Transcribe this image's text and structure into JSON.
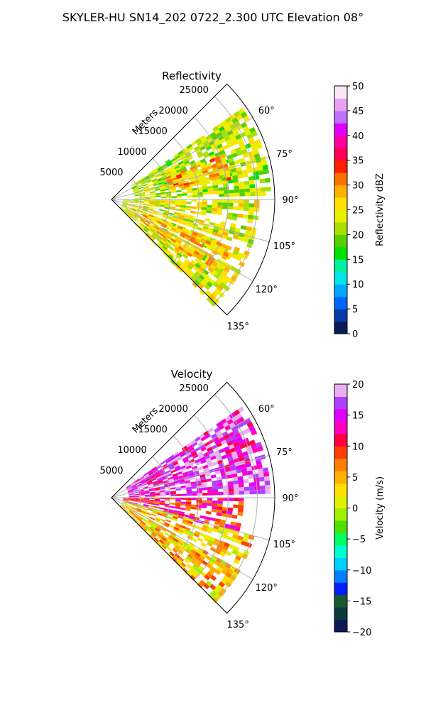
{
  "title": "SKYLER-HU  SN14_202  0722_2.300 UTC Elevation 08°",
  "chart_data": [
    {
      "type": "heatmap",
      "projection": "polar-sector",
      "title": "Reflectivity",
      "radial_label": "Meters",
      "radial_ticks": [
        5000,
        10000,
        15000,
        20000,
        25000
      ],
      "radial_tick_labels": [
        "5000",
        "10000",
        "15000",
        "20000",
        "25000"
      ],
      "rmax": 28000,
      "theta_range_deg": [
        45,
        135
      ],
      "theta_ticks": [
        60,
        75,
        90,
        105,
        120,
        135
      ],
      "theta_tick_labels": [
        "60°",
        "75°",
        "90°",
        "105°",
        "120°",
        "135°"
      ],
      "grid": true,
      "colorbar": {
        "label": "Reflectivity dBZ",
        "vmin": 0,
        "vmax": 50,
        "ticks": [
          0,
          5,
          10,
          15,
          20,
          25,
          30,
          35,
          40,
          45,
          50
        ],
        "tick_labels": [
          "0",
          "5",
          "10",
          "15",
          "20",
          "25",
          "30",
          "35",
          "40",
          "45",
          "50"
        ],
        "colormap": [
          "#0b1a56",
          "#0a3aa8",
          "#0066ff",
          "#00a8ff",
          "#00e5e5",
          "#00f0a0",
          "#00e000",
          "#55d000",
          "#a8e000",
          "#e8f000",
          "#ffe000",
          "#ffb000",
          "#ff7000",
          "#ff2000",
          "#ff0050",
          "#ff00a0",
          "#e000ff",
          "#c070ff",
          "#e8a0f0",
          "#f8e8f8"
        ]
      },
      "field_summary": [
        {
          "theta_range": [
            55,
            90
          ],
          "r_range": [
            4000,
            27000
          ],
          "value": 22
        },
        {
          "theta_range": [
            90,
            135
          ],
          "r_range": [
            2000,
            25000
          ],
          "value": 24
        },
        {
          "theta_range": [
            68,
            80
          ],
          "r_range": [
            10000,
            20000
          ],
          "value": 28
        },
        {
          "theta_range": [
            110,
            125
          ],
          "r_range": [
            6000,
            22000
          ],
          "value": 27
        }
      ]
    },
    {
      "type": "heatmap",
      "projection": "polar-sector",
      "title": "Velocity",
      "radial_label": "Meters",
      "radial_ticks": [
        5000,
        10000,
        15000,
        20000,
        25000
      ],
      "radial_tick_labels": [
        "5000",
        "10000",
        "15000",
        "20000",
        "25000"
      ],
      "rmax": 28000,
      "theta_range_deg": [
        45,
        135
      ],
      "theta_ticks": [
        60,
        75,
        90,
        105,
        120,
        135
      ],
      "theta_tick_labels": [
        "60°",
        "75°",
        "90°",
        "105°",
        "120°",
        "135°"
      ],
      "grid": true,
      "colorbar": {
        "label": "Velocity (m/s)",
        "vmin": -20,
        "vmax": 20,
        "ticks": [
          -20,
          -15,
          -10,
          -5,
          0,
          5,
          10,
          15,
          20
        ],
        "tick_labels": [
          "−20",
          "−15",
          "−10",
          "−5",
          "0",
          "5",
          "10",
          "15",
          "20"
        ],
        "colormap": [
          "#0b1a56",
          "#0d3a3a",
          "#1a5a30",
          "#0020ff",
          "#0080ff",
          "#00d0ff",
          "#00ffd0",
          "#00ff60",
          "#50e000",
          "#a0f000",
          "#e0f000",
          "#ffe000",
          "#ffb000",
          "#ff8000",
          "#ff4000",
          "#ff0040",
          "#ff00c0",
          "#e000ff",
          "#b040ff",
          "#e8b0f0"
        ]
      },
      "field_summary": [
        {
          "theta_range": [
            55,
            90
          ],
          "r_range": [
            3000,
            27000
          ],
          "value": 16
        },
        {
          "theta_range": [
            90,
            105
          ],
          "r_range": [
            2000,
            22000
          ],
          "value": 11
        },
        {
          "theta_range": [
            105,
            135
          ],
          "r_range": [
            2000,
            25000
          ],
          "value": 4
        }
      ]
    }
  ]
}
